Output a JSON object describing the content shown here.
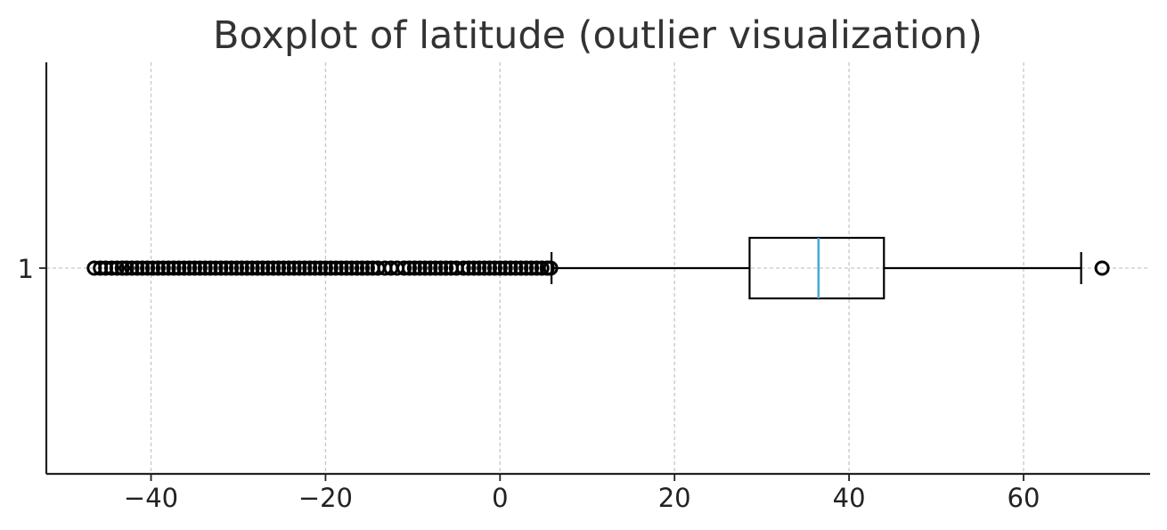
{
  "chart_data": {
    "type": "boxplot",
    "orientation": "horizontal",
    "title": "Boxplot of latitude (outlier visualization)",
    "xlabel": "",
    "ylabel": "",
    "xlim": [
      -52,
      74.5
    ],
    "x_ticks": [
      -40,
      -20,
      0,
      20,
      40,
      60
    ],
    "x_tick_labels": [
      "−40",
      "−20",
      "0",
      "20",
      "40",
      "60"
    ],
    "y_tick_labels": [
      "1"
    ],
    "grid": true,
    "series": [
      {
        "category": "1",
        "whisker_low": 5.9,
        "q1": 28.6,
        "median": 36.5,
        "q3": 44.0,
        "whisker_high": 66.6,
        "outliers_high": [
          69.0
        ],
        "outliers_low": [
          -46.5,
          -45.8,
          -45.2,
          -44.5,
          -43.9,
          -43.3,
          -42.8,
          -42.2,
          -41.6,
          -41.0,
          -40.4,
          -39.8,
          -39.2,
          -38.6,
          -38.0,
          -37.4,
          -36.8,
          -36.2,
          -35.6,
          -35.0,
          -34.4,
          -33.8,
          -33.2,
          -32.6,
          -32.0,
          -31.4,
          -30.8,
          -30.2,
          -29.6,
          -29.0,
          -28.4,
          -27.8,
          -27.2,
          -26.6,
          -26.0,
          -25.4,
          -24.8,
          -24.2,
          -23.6,
          -23.0,
          -22.4,
          -21.8,
          -21.2,
          -20.6,
          -20.0,
          -19.4,
          -18.8,
          -18.2,
          -17.6,
          -17.0,
          -16.4,
          -15.8,
          -15.2,
          -14.6,
          -14.0,
          -13.2,
          -12.5,
          -11.8,
          -11.0,
          -10.4,
          -9.8,
          -9.2,
          -8.6,
          -8.0,
          -7.4,
          -6.8,
          -6.2,
          -5.6,
          -5.0,
          -4.2,
          -3.6,
          -3.0,
          -2.4,
          -1.8,
          -1.2,
          -0.6,
          0.0,
          0.6,
          1.2,
          1.8,
          2.4,
          3.0,
          3.6,
          4.2,
          4.8,
          5.4,
          5.8
        ]
      }
    ],
    "colors": {
      "median": "#4aa8d8",
      "box": "#000000",
      "grid": "#c8c8c8",
      "outlier": "#000000"
    }
  }
}
